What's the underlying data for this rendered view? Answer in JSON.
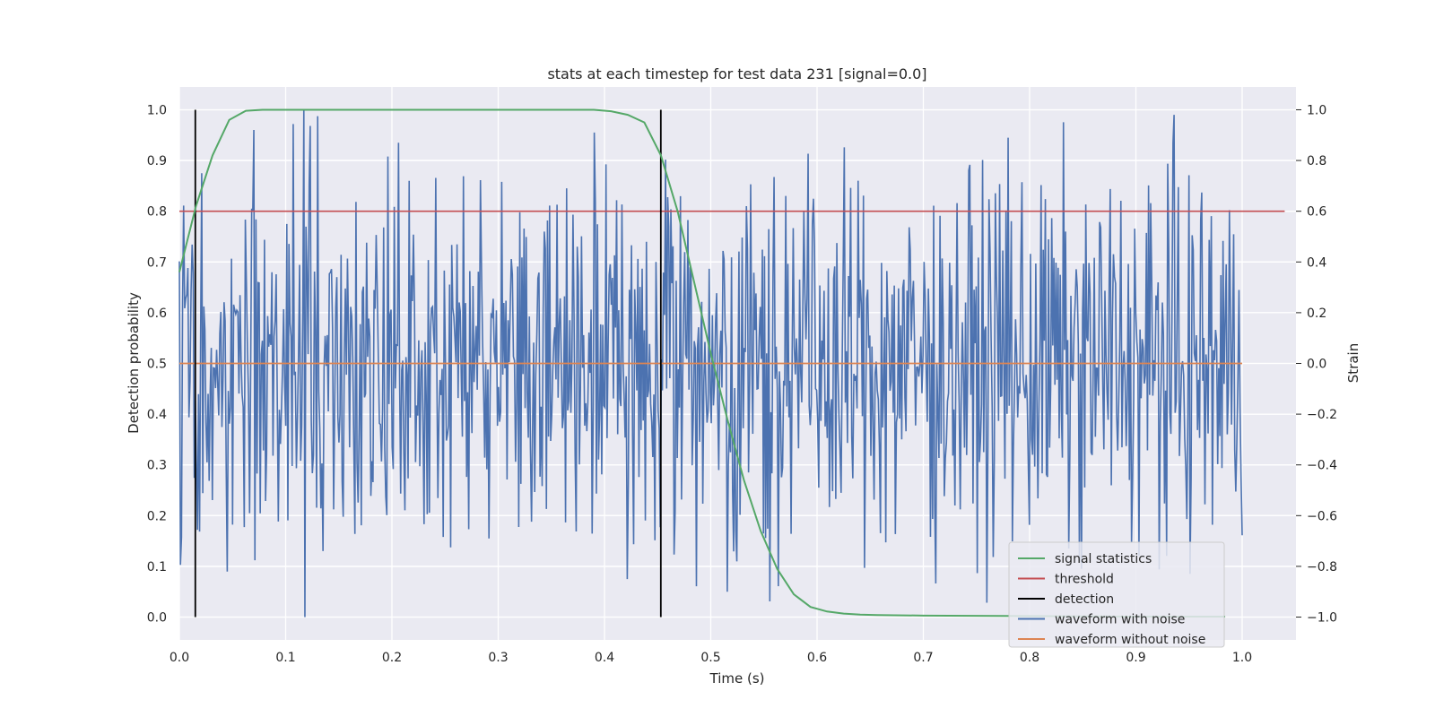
{
  "chart_data": {
    "type": "line",
    "title": "stats at each timestep for test data 231 [signal=0.0]",
    "xlabel": "Time (s)",
    "ylabel": "Detection probability",
    "y2label": "Strain",
    "xlim": [
      0.0,
      1.05
    ],
    "ylim": [
      -0.045,
      1.045
    ],
    "y2lim": [
      -1.09,
      1.09
    ],
    "x_ticks": [
      "0.0",
      "0.1",
      "0.2",
      "0.3",
      "0.4",
      "0.5",
      "0.6",
      "0.7",
      "0.8",
      "0.9",
      "1.0"
    ],
    "y_ticks": [
      "0.0",
      "0.1",
      "0.2",
      "0.3",
      "0.4",
      "0.5",
      "0.6",
      "0.7",
      "0.8",
      "0.9",
      "1.0"
    ],
    "y2_ticks": [
      "−1.0",
      "−0.8",
      "−0.6",
      "−0.4",
      "−0.2",
      "0.0",
      "0.2",
      "0.4",
      "0.6",
      "0.8",
      "1.0"
    ],
    "grid": true,
    "legend_position": "lower-right",
    "colors": {
      "background": "#eaeaf2",
      "grid": "#ffffff",
      "signal_statistics": "#55a868",
      "threshold": "#c44e52",
      "detection": "#000000",
      "waveform_with_noise": "#4c72b0",
      "waveform_without_noise": "#dd8452"
    },
    "series": [
      {
        "name": "signal statistics",
        "axis": "left",
        "x": [
          0.0,
          0.0156,
          0.0312,
          0.0469,
          0.0625,
          0.0781,
          0.0938,
          0.1094,
          0.125,
          0.3,
          0.39,
          0.4062,
          0.4219,
          0.4375,
          0.4531,
          0.4688,
          0.4844,
          0.5,
          0.5156,
          0.5312,
          0.5469,
          0.5625,
          0.5781,
          0.5938,
          0.6094,
          0.625,
          0.6406,
          0.6562,
          0.7,
          0.8,
          0.9,
          0.984
        ],
        "values": [
          0.68,
          0.81,
          0.91,
          0.98,
          0.998,
          1.0,
          1.0,
          1.0,
          1.0,
          1.0,
          1.0,
          0.997,
          0.99,
          0.975,
          0.91,
          0.8,
          0.66,
          0.52,
          0.39,
          0.27,
          0.17,
          0.095,
          0.045,
          0.02,
          0.011,
          0.007,
          0.005,
          0.004,
          0.003,
          0.002,
          0.001,
          0.001
        ]
      },
      {
        "name": "threshold",
        "axis": "left",
        "x": [
          0.0,
          1.04
        ],
        "values": [
          0.8,
          0.8
        ]
      },
      {
        "name": "detection",
        "axis": "left",
        "x": [
          0.015,
          0.453
        ],
        "values": [
          1.0,
          1.0
        ]
      },
      {
        "name": "waveform with noise",
        "axis": "right",
        "x_range": [
          0.0,
          1.0
        ],
        "points": 1000,
        "values_summary": "random noise, range approx -1.0 to 1.0",
        "peaks": [
          [
            0.117,
            1.0
          ],
          [
            0.117,
            -1.0
          ],
          [
            0.206,
            0.87
          ],
          [
            0.39,
            0.91
          ],
          [
            0.42,
            -0.85
          ],
          [
            0.515,
            -0.9
          ],
          [
            0.78,
            0.89
          ],
          [
            0.935,
            0.87
          ],
          [
            0.95,
            -0.83
          ]
        ]
      },
      {
        "name": "waveform without noise",
        "axis": "right",
        "x": [
          0.0,
          1.0
        ],
        "values": [
          0.0,
          0.0
        ]
      }
    ]
  }
}
